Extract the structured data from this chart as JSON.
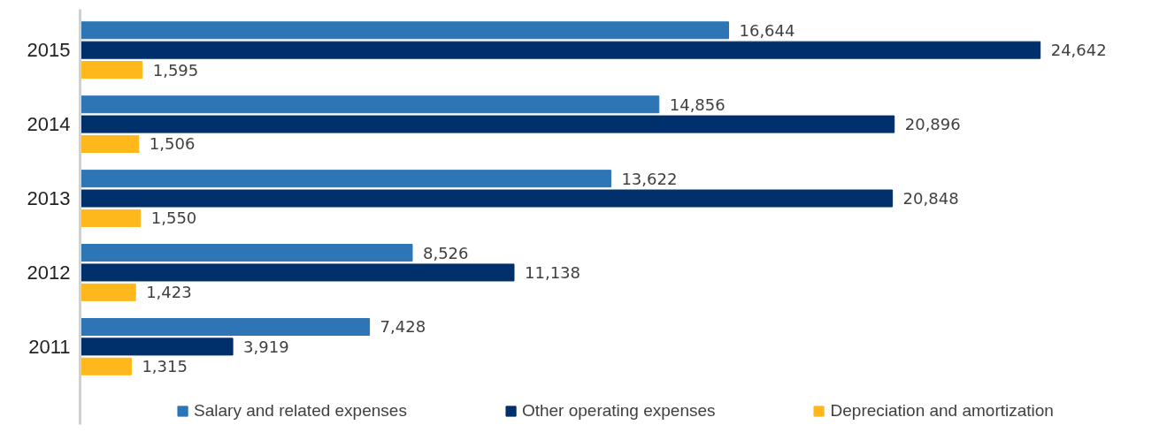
{
  "chart_data": {
    "type": "bar",
    "orientation": "horizontal",
    "categories": [
      "2015",
      "2014",
      "2013",
      "2012",
      "2011"
    ],
    "series": [
      {
        "name": "Salary and related expenses",
        "color": "#2e75b6",
        "values": [
          16644,
          14856,
          13622,
          8526,
          7428
        ],
        "value_labels": [
          "16,644",
          "14,856",
          "13,622",
          "8,526",
          "7,428"
        ]
      },
      {
        "name": "Other operating expenses",
        "color": "#00306b",
        "values": [
          24642,
          20896,
          20848,
          11138,
          3919
        ],
        "value_labels": [
          "24,642",
          "20,896",
          "20,848",
          "11,138",
          "3,919"
        ]
      },
      {
        "name": "Depreciation and amortization",
        "color": "#ffb81c",
        "values": [
          1595,
          1506,
          1550,
          1423,
          1315
        ],
        "value_labels": [
          "1,595",
          "1,506",
          "1,550",
          "1,423",
          "1,315"
        ]
      }
    ],
    "tick_labels": "y",
    "legend": "bottom"
  }
}
